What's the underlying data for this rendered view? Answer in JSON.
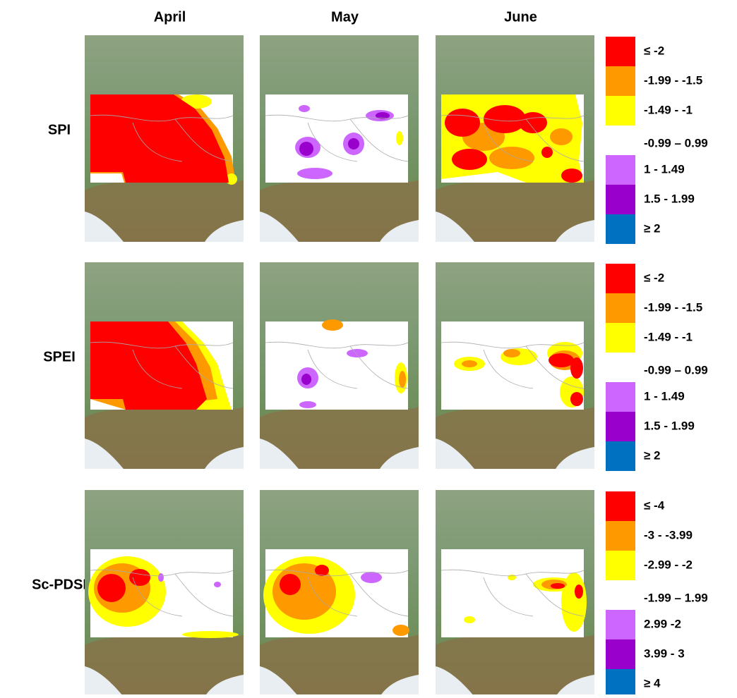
{
  "columns": [
    "April",
    "May",
    "June"
  ],
  "rows": [
    {
      "label": "SPI",
      "legend": [
        {
          "label": "≤ -2",
          "color": "#ff0000"
        },
        {
          "label": "-1.99 - -1.5",
          "color": "#ff9900"
        },
        {
          "label": "-1.49 - -1",
          "color": "#ffff00"
        },
        {
          "label": "-0.99 – 0.99",
          "color": "#ffffff"
        },
        {
          "label": "1 - 1.49",
          "color": "#cc66ff"
        },
        {
          "label": "1.5 - 1.99",
          "color": "#9900cc"
        },
        {
          "label": "≥ 2",
          "color": "#0070c0"
        }
      ]
    },
    {
      "label": "SPEI",
      "legend": [
        {
          "label": "≤ -2",
          "color": "#ff0000"
        },
        {
          "label": "-1.99 - -1.5",
          "color": "#ff9900"
        },
        {
          "label": "-1.49 - -1",
          "color": "#ffff00"
        },
        {
          "label": "-0.99 – 0.99",
          "color": "#ffffff"
        },
        {
          "label": "1 - 1.49",
          "color": "#cc66ff"
        },
        {
          "label": "1.5 - 1.99",
          "color": "#9900cc"
        },
        {
          "label": "≥ 2",
          "color": "#0070c0"
        }
      ]
    },
    {
      "label": "Sc-PDSI",
      "legend": [
        {
          "label": "≤ -4",
          "color": "#ff0000"
        },
        {
          "label": "-3 - -3.99",
          "color": "#ff9900"
        },
        {
          "label": "-2.99 - -2",
          "color": "#ffff00"
        },
        {
          "label": "-1.99 – 1.99",
          "color": "#ffffff"
        },
        {
          "label": "2.99 -2",
          "color": "#cc66ff"
        },
        {
          "label": "3.99 - 3",
          "color": "#9900cc"
        },
        {
          "label": "≥ 4",
          "color": "#0070c0"
        }
      ]
    }
  ]
}
